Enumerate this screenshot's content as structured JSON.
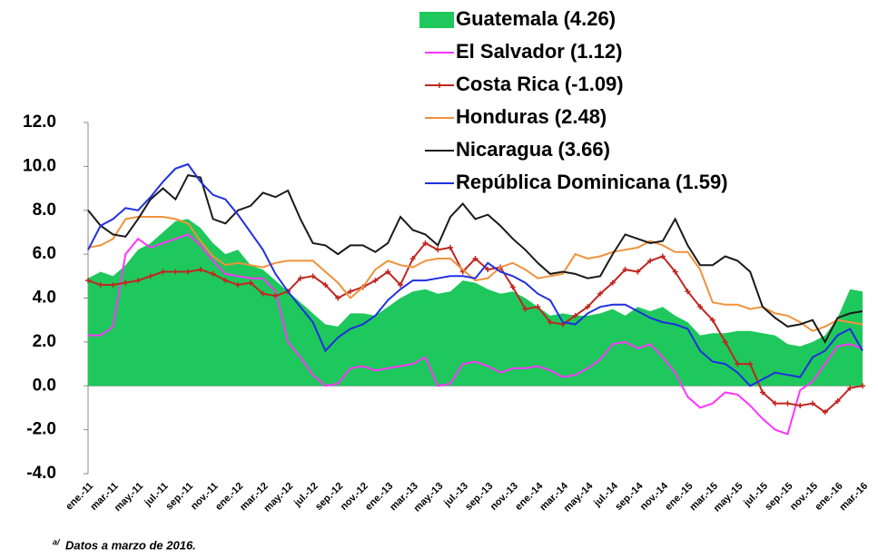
{
  "chart_data": {
    "type": "line",
    "categories": [
      "ene.-11",
      null,
      "mar.-11",
      null,
      "may.-11",
      null,
      "jul.-11",
      null,
      "sep.-11",
      null,
      "nov.-11",
      null,
      "ene.-12",
      null,
      "mar.-12",
      null,
      "may.-12",
      null,
      "jul.-12",
      null,
      "sep.-12",
      null,
      "nov.-12",
      null,
      "ene.-13",
      null,
      "mar.-13",
      null,
      "may.-13",
      null,
      "jul.-13",
      null,
      "sep.-13",
      null,
      "nov.-13",
      null,
      "ene.-14",
      null,
      "mar.-14",
      null,
      "may.-14",
      null,
      "jul.-14",
      null,
      "sep.-14",
      null,
      "nov.-14",
      null,
      "ene.-15",
      null,
      "mar.-15",
      null,
      "may.-15",
      null,
      "jul.-15",
      null,
      "sep.-15",
      null,
      "nov.-15",
      null,
      "ene.-16",
      null,
      "mar.-16"
    ],
    "series": [
      {
        "name": "Guatemala (4.26)",
        "color": "#1ec85c",
        "style": "area",
        "values": [
          4.9,
          5.2,
          5.0,
          5.5,
          6.2,
          6.5,
          7.0,
          7.5,
          7.6,
          7.2,
          6.5,
          6.0,
          6.2,
          5.5,
          5.3,
          4.8,
          4.3,
          3.8,
          3.3,
          2.8,
          2.7,
          3.3,
          3.3,
          3.2,
          3.6,
          4.0,
          4.3,
          4.4,
          4.2,
          4.3,
          4.8,
          4.7,
          4.4,
          4.2,
          4.3,
          4.0,
          3.6,
          3.2,
          3.3,
          3.2,
          3.2,
          3.3,
          3.5,
          3.2,
          3.6,
          3.4,
          3.6,
          3.2,
          2.9,
          2.3,
          2.4,
          2.4,
          2.5,
          2.5,
          2.4,
          2.3,
          1.9,
          1.8,
          2.0,
          2.3,
          3.1,
          4.4,
          4.3
        ]
      },
      {
        "name": "El Salvador (1.12)",
        "color": "#ff33ff",
        "style": "line",
        "values": [
          2.3,
          2.3,
          2.7,
          6.0,
          6.7,
          6.3,
          6.5,
          6.7,
          6.9,
          6.4,
          5.7,
          5.1,
          5.0,
          4.9,
          4.9,
          4.3,
          2.0,
          1.3,
          0.5,
          0.0,
          0.1,
          0.8,
          0.9,
          0.7,
          0.8,
          0.9,
          1.0,
          1.3,
          0.0,
          0.1,
          1.0,
          1.1,
          0.9,
          0.6,
          0.8,
          0.8,
          0.9,
          0.7,
          0.4,
          0.5,
          0.8,
          1.2,
          1.9,
          2.0,
          1.7,
          1.9,
          1.3,
          0.6,
          -0.5,
          -1.0,
          -0.8,
          -0.3,
          -0.4,
          -0.9,
          -1.5,
          -2.0,
          -2.2,
          -0.2,
          0.2,
          1.0,
          1.8,
          1.9,
          1.7
        ]
      },
      {
        "name": "Costa Rica (-1.09)",
        "color": "#c0261f",
        "style": "line",
        "marker": "plus",
        "values": [
          4.8,
          4.6,
          4.6,
          4.7,
          4.8,
          5.0,
          5.2,
          5.2,
          5.2,
          5.3,
          5.1,
          4.8,
          4.6,
          4.7,
          4.2,
          4.1,
          4.3,
          4.9,
          5.0,
          4.6,
          4.0,
          4.3,
          4.5,
          4.8,
          5.2,
          4.6,
          5.8,
          6.5,
          6.2,
          6.3,
          5.2,
          5.8,
          5.3,
          5.4,
          4.5,
          3.5,
          3.6,
          2.9,
          2.8,
          3.2,
          3.6,
          4.2,
          4.7,
          5.3,
          5.2,
          5.7,
          5.9,
          5.2,
          4.3,
          3.6,
          3.0,
          2.0,
          1.0,
          1.0,
          -0.3,
          -0.8,
          -0.8,
          -0.9,
          -0.8,
          -1.2,
          -0.7,
          -0.1,
          0.0
        ]
      },
      {
        "name": "Honduras (2.48)",
        "color": "#f0913a",
        "style": "line",
        "values": [
          6.3,
          6.4,
          6.7,
          7.6,
          7.7,
          7.7,
          7.7,
          7.6,
          7.4,
          6.6,
          5.9,
          5.5,
          5.6,
          5.5,
          5.4,
          5.6,
          5.7,
          5.7,
          5.7,
          5.2,
          4.7,
          4.0,
          4.5,
          5.3,
          5.7,
          5.5,
          5.4,
          5.7,
          5.8,
          5.8,
          5.3,
          4.8,
          4.9,
          5.4,
          5.6,
          5.3,
          4.9,
          5.0,
          5.1,
          6.0,
          5.8,
          5.9,
          6.1,
          6.2,
          6.3,
          6.6,
          6.4,
          6.1,
          6.1,
          5.3,
          3.8,
          3.7,
          3.7,
          3.5,
          3.6,
          3.3,
          3.2,
          2.9,
          2.5,
          2.7,
          3.0,
          2.9,
          2.8
        ]
      },
      {
        "name": "Nicaragua (3.66)",
        "color": "#1a1a1a",
        "style": "line",
        "values": [
          8.0,
          7.3,
          6.9,
          6.8,
          7.6,
          8.5,
          9.0,
          8.5,
          9.6,
          9.5,
          7.6,
          7.4,
          8.0,
          8.2,
          8.8,
          8.6,
          8.9,
          7.6,
          6.5,
          6.4,
          6.0,
          6.4,
          6.4,
          6.1,
          6.5,
          7.7,
          7.1,
          6.9,
          6.4,
          7.7,
          8.3,
          7.6,
          7.8,
          7.3,
          6.7,
          6.2,
          5.6,
          5.1,
          5.2,
          5.1,
          4.9,
          5.0,
          6.0,
          6.9,
          6.7,
          6.5,
          6.6,
          7.6,
          6.4,
          5.5,
          5.5,
          5.9,
          5.7,
          5.2,
          3.6,
          3.1,
          2.7,
          2.8,
          3.0,
          2.0,
          3.1,
          3.3,
          3.4
        ]
      },
      {
        "name": "República Dominicana (1.59)",
        "color": "#1f2fe0",
        "style": "line",
        "values": [
          6.2,
          7.3,
          7.6,
          8.1,
          8.0,
          8.6,
          9.3,
          9.9,
          10.1,
          9.3,
          8.7,
          8.5,
          7.8,
          7.0,
          6.2,
          5.1,
          4.3,
          3.6,
          2.9,
          1.6,
          2.2,
          2.6,
          2.8,
          3.2,
          3.9,
          4.4,
          4.8,
          4.8,
          4.9,
          5.0,
          5.0,
          4.9,
          5.6,
          5.2,
          5.0,
          4.7,
          4.2,
          3.9,
          2.9,
          2.8,
          3.3,
          3.6,
          3.7,
          3.7,
          3.4,
          3.1,
          2.9,
          2.8,
          2.6,
          1.6,
          1.1,
          1.0,
          0.6,
          0.0,
          0.3,
          0.6,
          0.5,
          0.4,
          1.3,
          1.6,
          2.3,
          2.6,
          1.6
        ]
      }
    ],
    "ylim": [
      -4,
      12
    ],
    "yticks": [
      {
        "value": -4,
        "label": "-4.0"
      },
      {
        "value": -2,
        "label": "-2.0"
      },
      {
        "value": 0,
        "label": "0.0"
      },
      {
        "value": 2,
        "label": "2.0"
      },
      {
        "value": 4,
        "label": "4.0"
      },
      {
        "value": 6,
        "label": "6.0"
      },
      {
        "value": 8,
        "label": "8.0"
      },
      {
        "value": 10,
        "label": "10.0"
      },
      {
        "value": 12,
        "label": "12.0"
      }
    ],
    "grid": false,
    "legend": "top-right",
    "footnote_marker": "a/",
    "footnote": "Datos a marzo de 2016."
  }
}
